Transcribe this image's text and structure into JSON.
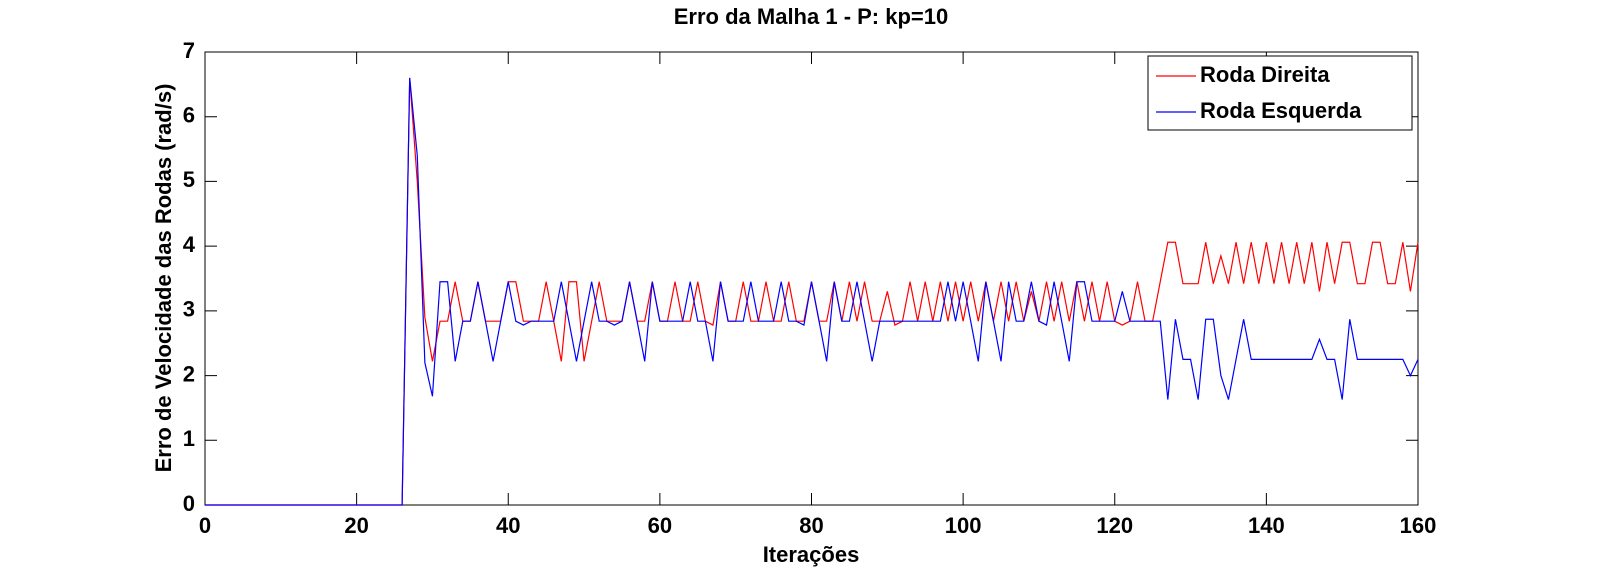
{
  "chart_data": {
    "type": "line",
    "title": "Erro da Malha 1 - P: kp=10",
    "x_label": "Iterações",
    "y_label": "Erro de Velocidade das Rodas (rad/s)",
    "x": [
      0,
      1,
      2,
      3,
      4,
      5,
      6,
      7,
      8,
      9,
      10,
      11,
      12,
      13,
      14,
      15,
      16,
      17,
      18,
      19,
      20,
      21,
      22,
      23,
      24,
      25,
      26,
      27,
      28,
      29,
      30,
      31,
      32,
      33,
      34,
      35,
      36,
      37,
      38,
      39,
      40,
      41,
      42,
      43,
      44,
      45,
      46,
      47,
      48,
      49,
      50,
      51,
      52,
      53,
      54,
      55,
      56,
      57,
      58,
      59,
      60,
      61,
      62,
      63,
      64,
      65,
      66,
      67,
      68,
      69,
      70,
      71,
      72,
      73,
      74,
      75,
      76,
      77,
      78,
      79,
      80,
      81,
      82,
      83,
      84,
      85,
      86,
      87,
      88,
      89,
      90,
      91,
      92,
      93,
      94,
      95,
      96,
      97,
      98,
      99,
      100,
      101,
      102,
      103,
      104,
      105,
      106,
      107,
      108,
      109,
      110,
      111,
      112,
      113,
      114,
      115,
      116,
      117,
      118,
      119,
      120,
      121,
      122,
      123,
      124,
      125,
      126,
      127,
      128,
      129,
      130,
      131,
      132,
      133,
      134,
      135,
      136,
      137,
      138,
      139,
      140,
      141,
      142,
      143,
      144,
      145,
      146,
      147,
      148,
      149,
      150,
      151,
      152,
      153,
      154,
      155,
      156,
      157,
      158,
      159,
      160
    ],
    "series": [
      {
        "name": "Roda Direita",
        "color": "#ff0000",
        "values": [
          0,
          0,
          0,
          0,
          0,
          0,
          0,
          0,
          0,
          0,
          0,
          0,
          0,
          0,
          0,
          0,
          0,
          0,
          0,
          0,
          0,
          0,
          0,
          0,
          0,
          0,
          0,
          6.6,
          5.0,
          2.9,
          2.22,
          2.84,
          2.84,
          3.45,
          2.84,
          2.84,
          3.45,
          2.84,
          2.84,
          2.84,
          3.45,
          3.45,
          2.84,
          2.84,
          2.84,
          3.45,
          2.84,
          2.22,
          3.45,
          3.45,
          2.22,
          2.84,
          3.45,
          2.84,
          2.84,
          2.84,
          3.45,
          2.84,
          2.84,
          3.45,
          2.84,
          2.84,
          3.45,
          2.84,
          2.84,
          3.45,
          2.84,
          2.78,
          3.45,
          2.84,
          2.84,
          3.45,
          2.84,
          2.84,
          3.45,
          2.84,
          2.84,
          3.45,
          2.84,
          2.84,
          3.45,
          2.84,
          2.84,
          3.45,
          2.84,
          3.45,
          2.84,
          3.45,
          2.84,
          2.84,
          3.3,
          2.78,
          2.84,
          3.45,
          2.84,
          3.45,
          2.84,
          3.45,
          2.84,
          3.45,
          2.84,
          3.45,
          2.84,
          3.45,
          2.84,
          3.45,
          2.84,
          3.45,
          2.84,
          3.3,
          2.84,
          3.45,
          2.84,
          3.45,
          2.84,
          3.45,
          2.84,
          3.45,
          2.84,
          3.45,
          2.84,
          2.78,
          2.84,
          3.45,
          2.84,
          2.84,
          3.45,
          4.06,
          4.06,
          3.42,
          3.42,
          3.42,
          4.06,
          3.42,
          3.85,
          3.42,
          4.06,
          3.42,
          4.06,
          3.42,
          4.06,
          3.42,
          4.06,
          3.42,
          4.06,
          3.42,
          4.06,
          3.3,
          4.06,
          3.42,
          4.06,
          4.06,
          3.42,
          3.42,
          4.06,
          4.06,
          3.42,
          3.42,
          4.06,
          3.3,
          4.06
        ]
      },
      {
        "name": "Roda Esquerda",
        "color": "#0000ff",
        "values": [
          0,
          0,
          0,
          0,
          0,
          0,
          0,
          0,
          0,
          0,
          0,
          0,
          0,
          0,
          0,
          0,
          0,
          0,
          0,
          0,
          0,
          0,
          0,
          0,
          0,
          0,
          0,
          6.6,
          5.4,
          2.2,
          1.68,
          3.45,
          3.45,
          2.22,
          2.84,
          2.84,
          3.45,
          2.84,
          2.22,
          2.84,
          3.45,
          2.84,
          2.78,
          2.84,
          2.84,
          2.84,
          2.84,
          3.45,
          2.84,
          2.22,
          2.84,
          3.45,
          2.84,
          2.84,
          2.78,
          2.84,
          3.45,
          2.84,
          2.22,
          3.45,
          2.84,
          2.84,
          2.84,
          2.84,
          3.45,
          2.84,
          2.84,
          2.22,
          3.45,
          2.84,
          2.84,
          2.84,
          3.45,
          2.84,
          2.84,
          2.84,
          3.45,
          2.84,
          2.84,
          2.78,
          3.45,
          2.84,
          2.22,
          3.45,
          2.84,
          2.84,
          3.45,
          2.84,
          2.22,
          2.84,
          2.84,
          2.84,
          2.84,
          2.84,
          2.84,
          2.84,
          2.84,
          2.84,
          3.45,
          2.84,
          3.45,
          2.84,
          2.22,
          3.45,
          2.84,
          2.22,
          3.45,
          2.84,
          2.84,
          3.45,
          2.84,
          2.78,
          3.45,
          2.84,
          2.22,
          3.45,
          3.45,
          2.84,
          2.84,
          2.84,
          2.84,
          3.3,
          2.84,
          2.84,
          2.84,
          2.84,
          2.84,
          1.63,
          2.87,
          2.25,
          2.25,
          1.63,
          2.87,
          2.87,
          2.0,
          1.63,
          2.25,
          2.87,
          2.25,
          2.25,
          2.25,
          2.25,
          2.25,
          2.25,
          2.25,
          2.25,
          2.25,
          2.56,
          2.25,
          2.25,
          1.63,
          2.87,
          2.25,
          2.25,
          2.25,
          2.25,
          2.25,
          2.25,
          2.25,
          2.0,
          2.25
        ]
      }
    ],
    "xlim": [
      0,
      160
    ],
    "xticks": [
      0,
      20,
      40,
      60,
      80,
      100,
      120,
      140,
      160
    ],
    "ylim": [
      0,
      7
    ],
    "yticks": [
      0,
      1,
      2,
      3,
      4,
      5,
      6,
      7
    ],
    "legend": "upper right"
  }
}
